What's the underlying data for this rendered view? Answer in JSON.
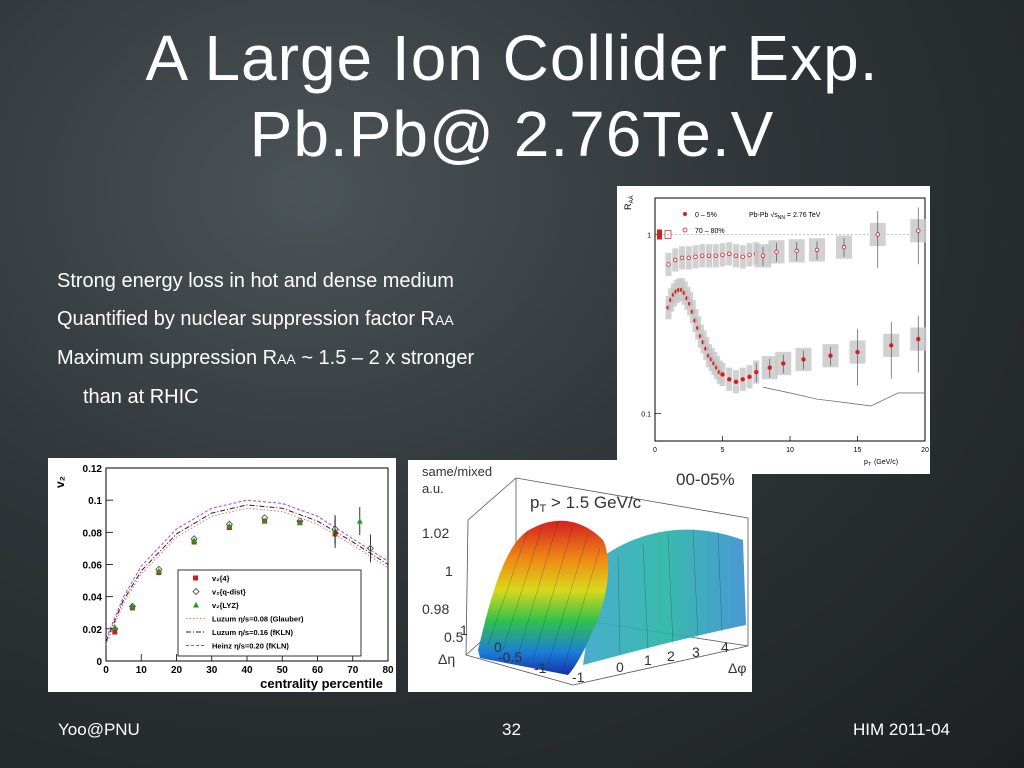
{
  "slide": {
    "title_line1": "A Large Ion Collider Exp.",
    "title_line2": "Pb.Pb@ 2.76Te.V",
    "bullets": [
      {
        "text": "Strong energy loss in hot and dense medium",
        "sub": "",
        "tail": ""
      },
      {
        "text": "Quantified by nuclear suppression factor R",
        "sub": "AA",
        "tail": ""
      },
      {
        "text": "Maximum suppression  R",
        "sub": "AA",
        "tail": "  ~ 1.5 – 2 x stronger"
      },
      {
        "text": "than  at RHIC",
        "sub": "",
        "tail": ""
      }
    ],
    "footer": {
      "left": "Yoo@PNU",
      "center": "32",
      "right": "HIM 2011-04"
    }
  },
  "chart_data": [
    {
      "type": "scatter",
      "ylabel_main": "R",
      "ylabel_sub": "AA",
      "xlabel_main": "p",
      "xlabel_sub": "T",
      "xlabel_unit": "(GeV/c)",
      "xlim": [
        0,
        20
      ],
      "ylim": [
        0.07,
        1.6
      ],
      "log_y": true,
      "x_ticks": [
        0,
        5,
        10,
        15,
        20
      ],
      "y_ticks": [
        {
          "v": 0.1,
          "label": "0.1"
        },
        {
          "v": 1,
          "label": "1"
        }
      ],
      "legend": {
        "placement": "top",
        "header": "Pb-Pb √s",
        "header_sub": "NN",
        "header_tail": " = 2.76 TeV",
        "entries": [
          "0 – 5%",
          "70 – 80%"
        ]
      },
      "series": [
        {
          "name": "0 – 5%",
          "color": "#d21f1f",
          "x": [
            1.0,
            1.2,
            1.4,
            1.6,
            1.8,
            2.0,
            2.2,
            2.4,
            2.6,
            2.8,
            3.0,
            3.2,
            3.4,
            3.6,
            3.8,
            4.0,
            4.2,
            4.4,
            4.6,
            4.8,
            5.0,
            5.5,
            6.0,
            6.5,
            7.0,
            7.5,
            8.5,
            9.5,
            11.0,
            13.0,
            15.0,
            17.5,
            19.5
          ],
          "y": [
            0.39,
            0.43,
            0.46,
            0.48,
            0.49,
            0.49,
            0.47,
            0.44,
            0.41,
            0.37,
            0.33,
            0.3,
            0.27,
            0.25,
            0.23,
            0.21,
            0.2,
            0.19,
            0.18,
            0.17,
            0.165,
            0.155,
            0.15,
            0.155,
            0.16,
            0.17,
            0.18,
            0.19,
            0.2,
            0.21,
            0.22,
            0.24,
            0.26
          ]
        },
        {
          "name": "70 – 80%",
          "color": "#d21f1f",
          "x": [
            1.0,
            1.5,
            2.0,
            2.5,
            3.0,
            3.5,
            4.0,
            4.5,
            5.0,
            5.5,
            6.0,
            6.5,
            7.0,
            7.5,
            8.0,
            9.0,
            10.5,
            12.0,
            14.0,
            16.5,
            19.5
          ],
          "y": [
            0.68,
            0.72,
            0.74,
            0.74,
            0.75,
            0.76,
            0.76,
            0.76,
            0.77,
            0.78,
            0.76,
            0.75,
            0.77,
            0.78,
            0.76,
            0.8,
            0.81,
            0.82,
            0.85,
            1.0,
            1.05
          ]
        }
      ]
    },
    {
      "type": "scatter",
      "ylabel": "v₂",
      "xlabel": "centrality percentile",
      "xlim": [
        0,
        80
      ],
      "ylim": [
        0,
        0.12
      ],
      "x_ticks": [
        0,
        10,
        20,
        30,
        40,
        50,
        60,
        70,
        80
      ],
      "y_ticks": [
        0,
        0.02,
        0.04,
        0.06,
        0.08,
        0.1,
        0.12
      ],
      "legend": {
        "placement": "bottom-center"
      },
      "series": [
        {
          "name": "v₂{4}",
          "marker": "square",
          "color": "#d01c1c",
          "x": [
            2.5,
            7.5,
            15,
            25,
            35,
            45,
            55,
            65
          ],
          "y": [
            0.018,
            0.033,
            0.055,
            0.074,
            0.083,
            0.087,
            0.086,
            0.079
          ]
        },
        {
          "name": "v₂{q-dist}",
          "marker": "diamond",
          "color": "#555555",
          "x": [
            2.5,
            7.5,
            15,
            25,
            35,
            45,
            55,
            65,
            75
          ],
          "y": [
            0.02,
            0.034,
            0.057,
            0.076,
            0.085,
            0.089,
            0.087,
            0.082,
            0.07
          ]
        },
        {
          "name": "v₂{LYZ}",
          "marker": "triangle",
          "color": "#1f9a1f",
          "x": [
            2.5,
            7.5,
            15,
            25,
            35,
            45,
            55,
            65,
            72
          ],
          "y": [
            0.021,
            0.034,
            0.056,
            0.075,
            0.084,
            0.087,
            0.086,
            0.081,
            0.087
          ]
        },
        {
          "name": "Luzum η/s=0.08 (Glauber)",
          "line": "dotted",
          "color": "#e07070",
          "x": [
            0,
            5,
            10,
            20,
            30,
            40,
            50,
            60,
            70,
            80
          ],
          "y": [
            0.01,
            0.036,
            0.054,
            0.077,
            0.09,
            0.095,
            0.093,
            0.085,
            0.072,
            0.058
          ]
        },
        {
          "name": "Luzum η/s=0.16 (fKLN)",
          "line": "dashdot",
          "color": "#222222",
          "x": [
            0,
            5,
            10,
            20,
            30,
            40,
            50,
            60,
            70,
            80
          ],
          "y": [
            0.012,
            0.038,
            0.056,
            0.079,
            0.092,
            0.097,
            0.095,
            0.087,
            0.074,
            0.06
          ]
        },
        {
          "name": "Heinz η/s=0.20 (fKLN)",
          "line": "dashed",
          "color": "#cc33cc",
          "x": [
            0,
            5,
            10,
            20,
            30,
            40,
            50,
            60,
            70,
            80
          ],
          "y": [
            0.014,
            0.04,
            0.059,
            0.082,
            0.095,
            0.1,
            0.098,
            0.09,
            0.076,
            0.062
          ]
        }
      ]
    },
    {
      "type": "surface",
      "zlabel_line1": "same/mixed",
      "zlabel_line2": "a.u.",
      "annotation_main": "p",
      "annotation_sub": "T",
      "annotation_tail": " > 1.5 GeV/c",
      "centrality": "00-05%",
      "z_ticks": [
        "1.02",
        "1",
        "0.98"
      ],
      "eta_ticks": [
        "1",
        "0.5",
        "0",
        "-0.5",
        "-1"
      ],
      "eta_label": "Δη",
      "phi_ticks": [
        "-1",
        "0",
        "1",
        "2",
        "3",
        "4"
      ],
      "phi_label": "Δφ"
    }
  ]
}
